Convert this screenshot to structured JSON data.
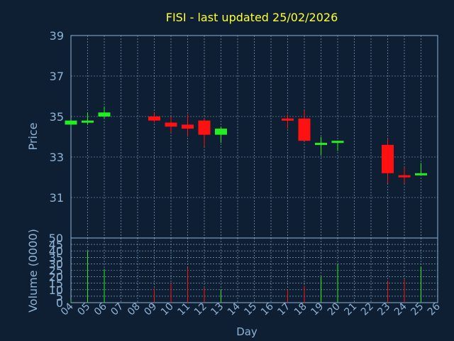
{
  "chart_data": {
    "type": "candlestick",
    "title": "FISI - last updated 25/02/2026",
    "price_axis": {
      "label": "Price",
      "ylim": [
        29,
        39
      ],
      "ticks": [
        31,
        33,
        35,
        37,
        39
      ]
    },
    "volume_axis": {
      "label": "Volume (0000)",
      "ylim": [
        0,
        50
      ],
      "ticks": [
        0,
        5,
        10,
        15,
        20,
        25,
        30,
        35,
        40,
        45,
        50
      ]
    },
    "xlabel": "Day",
    "x_ticks": [
      "04",
      "05",
      "06",
      "07",
      "08",
      "09",
      "10",
      "11",
      "12",
      "13",
      "14",
      "15",
      "16",
      "17",
      "18",
      "19",
      "20",
      "21",
      "22",
      "23",
      "24",
      "25",
      "26"
    ],
    "grid": true,
    "colors": {
      "up": "#22ee22",
      "down": "#ff1111",
      "background": "#0f1f33",
      "axis": "#8fb3d6",
      "title": "#ffff33"
    },
    "candles": [
      {
        "day": "04",
        "open": 34.6,
        "high": 34.8,
        "low": 34.5,
        "close": 34.8,
        "volume": 2
      },
      {
        "day": "05",
        "open": 34.7,
        "high": 35.2,
        "low": 34.6,
        "close": 34.8,
        "volume": 40
      },
      {
        "day": "06",
        "open": 35.0,
        "high": 35.5,
        "low": 34.9,
        "close": 35.2,
        "volume": 26
      },
      {
        "day": "09",
        "open": 35.0,
        "high": 35.2,
        "low": 34.7,
        "close": 34.8,
        "volume": 11
      },
      {
        "day": "10",
        "open": 34.7,
        "high": 35.0,
        "low": 34.2,
        "close": 34.5,
        "volume": 15
      },
      {
        "day": "11",
        "open": 34.6,
        "high": 35.1,
        "low": 34.0,
        "close": 34.4,
        "volume": 27
      },
      {
        "day": "12",
        "open": 34.8,
        "high": 34.9,
        "low": 33.5,
        "close": 34.1,
        "volume": 12
      },
      {
        "day": "13",
        "open": 34.1,
        "high": 34.5,
        "low": 33.7,
        "close": 34.4,
        "volume": 10
      },
      {
        "day": "17",
        "open": 34.9,
        "high": 35.1,
        "low": 34.4,
        "close": 34.8,
        "volume": 10
      },
      {
        "day": "18",
        "open": 34.9,
        "high": 35.3,
        "low": 33.8,
        "close": 33.8,
        "volume": 13
      },
      {
        "day": "19",
        "open": 33.6,
        "high": 34.0,
        "low": 33.1,
        "close": 33.7,
        "volume": 20
      },
      {
        "day": "20",
        "open": 33.7,
        "high": 33.8,
        "low": 33.3,
        "close": 33.8,
        "volume": 30
      },
      {
        "day": "23",
        "open": 33.6,
        "high": 33.9,
        "low": 31.7,
        "close": 32.2,
        "volume": 17
      },
      {
        "day": "24",
        "open": 32.1,
        "high": 32.5,
        "low": 31.7,
        "close": 32.0,
        "volume": 18
      },
      {
        "day": "25",
        "open": 32.1,
        "high": 32.7,
        "low": 32.1,
        "close": 32.2,
        "volume": 28
      }
    ]
  }
}
